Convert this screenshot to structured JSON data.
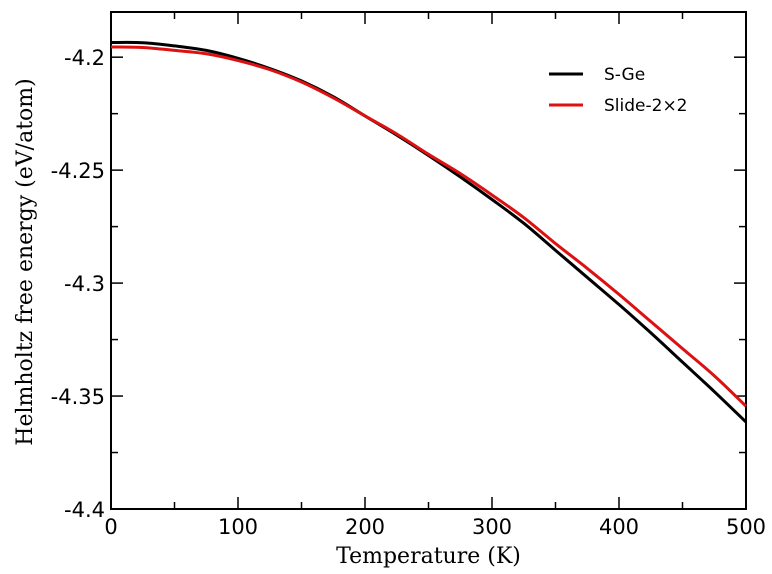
{
  "chart_data": {
    "type": "line",
    "title": "",
    "xlabel": "Temperature (K)",
    "ylabel": "Helmholtz free energy (eV/atom)",
    "xlim": [
      0,
      500
    ],
    "ylim": [
      -4.4,
      -4.18
    ],
    "xticks": [
      0,
      100,
      200,
      300,
      400,
      500
    ],
    "xtick_labels": [
      "0",
      "100",
      "200",
      "300",
      "400",
      "500"
    ],
    "yticks": [
      -4.4,
      -4.35,
      -4.3,
      -4.25,
      -4.2
    ],
    "ytick_labels": [
      "-4.4",
      "-4.35",
      "-4.3",
      "-4.25",
      "-4.2"
    ],
    "grid": false,
    "legend_position": "top-right",
    "x": [
      0,
      25,
      50,
      75,
      100,
      125,
      150,
      175,
      200,
      225,
      250,
      275,
      300,
      325,
      350,
      375,
      400,
      425,
      450,
      475,
      500
    ],
    "series": [
      {
        "name": "S-Ge",
        "color": "#000000",
        "values": [
          -4.1935,
          -4.1936,
          -4.195,
          -4.197,
          -4.2005,
          -4.205,
          -4.2105,
          -4.2175,
          -4.226,
          -4.2345,
          -4.2435,
          -4.253,
          -4.263,
          -4.2735,
          -4.2855,
          -4.2975,
          -4.3095,
          -4.322,
          -4.335,
          -4.348,
          -4.3615
        ]
      },
      {
        "name": "Slide-2×2",
        "color": "#dd1111",
        "values": [
          -4.1955,
          -4.1957,
          -4.197,
          -4.1985,
          -4.2015,
          -4.2055,
          -4.211,
          -4.218,
          -4.226,
          -4.234,
          -4.243,
          -4.2515,
          -4.261,
          -4.271,
          -4.2825,
          -4.2935,
          -4.305,
          -4.317,
          -4.329,
          -4.341,
          -4.3545
        ]
      }
    ]
  }
}
